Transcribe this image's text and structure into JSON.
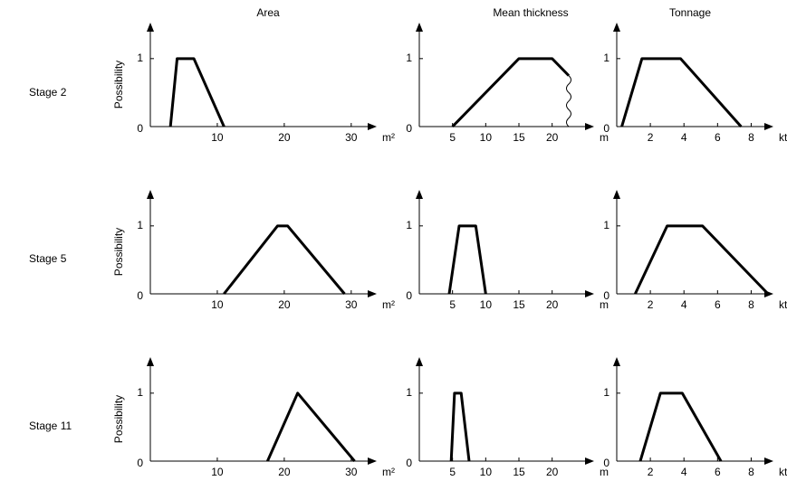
{
  "column_titles": [
    "Area",
    "Mean thickness",
    "Tonnage"
  ],
  "row_labels": [
    "Stage 2",
    "Stage 5",
    "Stage 11"
  ],
  "chart_data": [
    {
      "type": "line",
      "x_label": "m²",
      "y_label": "Possibility",
      "color": "#000000",
      "x": [
        3,
        4,
        6.5,
        11
      ],
      "values": [
        0,
        1,
        1,
        0
      ],
      "xlim": [
        0,
        33
      ],
      "ylim": [
        0,
        1.45
      ],
      "xticks": [
        10,
        20,
        30
      ],
      "yticks": [
        0,
        1
      ]
    },
    {
      "type": "line",
      "x_label": "m",
      "color": "#000000",
      "x": [
        5,
        15,
        20,
        22.5
      ],
      "values": [
        0,
        1,
        1,
        0.75
      ],
      "xlim": [
        0,
        25.5
      ],
      "ylim": [
        0,
        1.45
      ],
      "xticks": [
        5,
        10,
        15,
        20
      ],
      "yticks": [
        0,
        1
      ]
    },
    {
      "type": "line",
      "x_label": "kt",
      "color": "#000000",
      "x": [
        0.3,
        1.5,
        3.8,
        7.4
      ],
      "values": [
        0,
        1,
        1,
        0
      ],
      "xlim": [
        0,
        9
      ],
      "ylim": [
        0,
        1.45
      ],
      "xticks": [
        2,
        4,
        6,
        8
      ],
      "yticks": [
        0,
        1
      ]
    },
    {
      "type": "line",
      "x_label": "m²",
      "y_label": "Possibility",
      "color": "#000000",
      "x": [
        11,
        19,
        20.5,
        29
      ],
      "values": [
        0,
        1,
        1,
        0
      ],
      "xlim": [
        0,
        33
      ],
      "ylim": [
        0,
        1.45
      ],
      "xticks": [
        10,
        20,
        30
      ],
      "yticks": [
        0,
        1
      ]
    },
    {
      "type": "line",
      "x_label": "m",
      "color": "#000000",
      "x": [
        4.5,
        6,
        8.5,
        10
      ],
      "values": [
        0,
        1,
        1,
        0
      ],
      "xlim": [
        0,
        25.5
      ],
      "ylim": [
        0,
        1.45
      ],
      "xticks": [
        5,
        10,
        15,
        20
      ],
      "yticks": [
        0,
        1
      ]
    },
    {
      "type": "line",
      "x_label": "kt",
      "color": "#000000",
      "x": [
        1.1,
        3,
        5.1,
        9
      ],
      "values": [
        0,
        1,
        1,
        0
      ],
      "xlim": [
        0,
        9
      ],
      "ylim": [
        0,
        1.45
      ],
      "xticks": [
        2,
        4,
        6,
        8
      ],
      "yticks": [
        0,
        1
      ]
    },
    {
      "type": "line",
      "x_label": "m²",
      "y_label": "Possibility",
      "color": "#000000",
      "x": [
        17.5,
        22,
        30.5
      ],
      "values": [
        0,
        1,
        0
      ],
      "xlim": [
        0,
        33
      ],
      "ylim": [
        0,
        1.45
      ],
      "xticks": [
        10,
        20,
        30
      ],
      "yticks": [
        0,
        1
      ]
    },
    {
      "type": "line",
      "x_label": "m",
      "color": "#000000",
      "x": [
        4.8,
        5.3,
        6.3,
        7.5
      ],
      "values": [
        0,
        1,
        1,
        0
      ],
      "xlim": [
        0,
        25.5
      ],
      "ylim": [
        0,
        1.45
      ],
      "xticks": [
        5,
        10,
        15,
        20
      ],
      "yticks": [
        0,
        1
      ]
    },
    {
      "type": "line",
      "x_label": "kt",
      "color": "#000000",
      "x": [
        1.4,
        2.6,
        3.9,
        6.2
      ],
      "values": [
        0,
        1,
        1,
        0
      ],
      "xlim": [
        0,
        9
      ],
      "ylim": [
        0,
        1.45
      ],
      "xticks": [
        2,
        4,
        6,
        8
      ],
      "yticks": [
        0,
        1
      ]
    }
  ]
}
